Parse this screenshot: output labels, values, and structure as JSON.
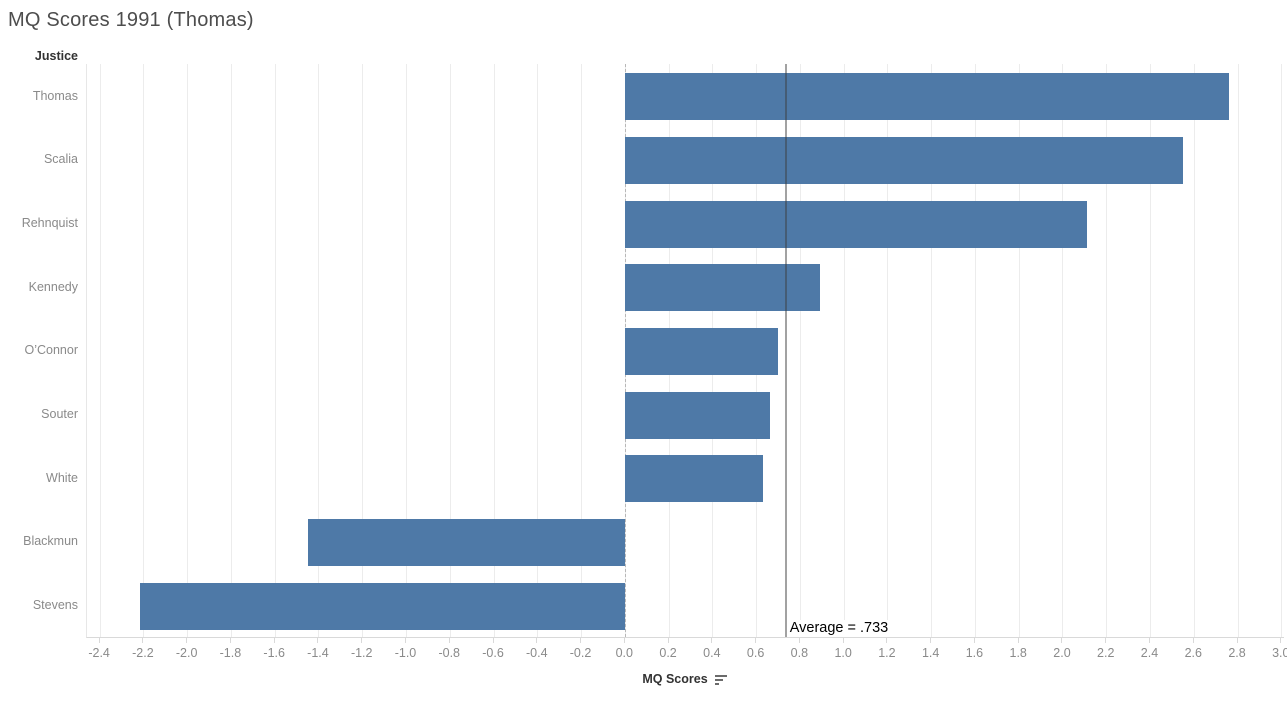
{
  "title": "MQ Scores 1991 (Thomas)",
  "chart_data": {
    "type": "bar",
    "orientation": "horizontal",
    "title": "MQ Scores 1991 (Thomas)",
    "row_header": "Justice",
    "xlabel": "MQ Scores",
    "categories": [
      "Thomas",
      "Scalia",
      "Rehnquist",
      "Kennedy",
      "O’Connor",
      "Souter",
      "White",
      "Blackmun",
      "Stevens"
    ],
    "values": [
      2.76,
      2.55,
      2.11,
      0.89,
      0.7,
      0.66,
      0.63,
      -1.45,
      -2.22
    ],
    "xlim": [
      -2.46,
      3.01
    ],
    "x_tick_labels": [
      "-2.4",
      "-2.2",
      "-2.0",
      "-1.8",
      "-1.6",
      "-1.4",
      "-1.2",
      "-1.0",
      "-0.8",
      "-0.6",
      "-0.4",
      "-0.2",
      "0.0",
      "0.2",
      "0.4",
      "0.6",
      "0.8",
      "1.0",
      "1.2",
      "1.4",
      "1.6",
      "1.8",
      "2.0",
      "2.2",
      "2.4",
      "2.6",
      "2.8",
      "3.0"
    ],
    "grid": true,
    "zero_line": true,
    "legend": "none",
    "bar_color": "#4e79a7",
    "reference_line": {
      "value": 0.733,
      "label": "Average = .733"
    },
    "sort_icon": "sort-descending-icon"
  }
}
